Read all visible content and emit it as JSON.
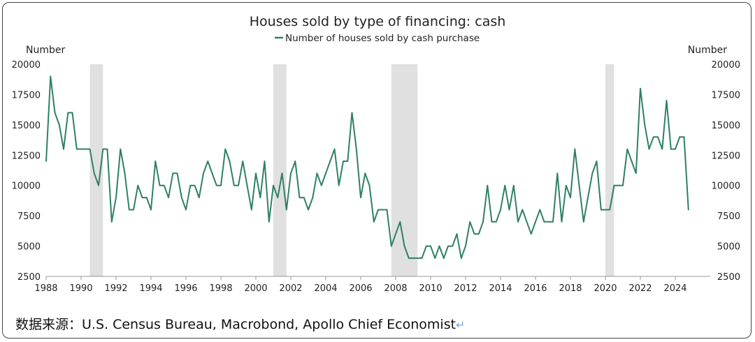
{
  "chart_data": {
    "type": "line",
    "title": "Houses sold by type of financing: cash",
    "left_axis_label": "Number",
    "right_axis_label": "Number",
    "series": [
      {
        "name": "Number of houses sold by cash purchase",
        "color": "#2e8065",
        "points": [
          [
            1988.0,
            12000
          ],
          [
            1988.25,
            19000
          ],
          [
            1988.5,
            16000
          ],
          [
            1988.75,
            15000
          ],
          [
            1989.0,
            13000
          ],
          [
            1989.25,
            16000
          ],
          [
            1989.5,
            16000
          ],
          [
            1989.75,
            13000
          ],
          [
            1990.0,
            13000
          ],
          [
            1990.25,
            13000
          ],
          [
            1990.5,
            13000
          ],
          [
            1990.75,
            11000
          ],
          [
            1991.0,
            10000
          ],
          [
            1991.25,
            13000
          ],
          [
            1991.5,
            13000
          ],
          [
            1991.75,
            7000
          ],
          [
            1992.0,
            9000
          ],
          [
            1992.25,
            13000
          ],
          [
            1992.5,
            11000
          ],
          [
            1992.75,
            8000
          ],
          [
            1993.0,
            8000
          ],
          [
            1993.25,
            10000
          ],
          [
            1993.5,
            9000
          ],
          [
            1993.75,
            9000
          ],
          [
            1994.0,
            8000
          ],
          [
            1994.25,
            12000
          ],
          [
            1994.5,
            10000
          ],
          [
            1994.75,
            10000
          ],
          [
            1995.0,
            9000
          ],
          [
            1995.25,
            11000
          ],
          [
            1995.5,
            11000
          ],
          [
            1995.75,
            9000
          ],
          [
            1996.0,
            8000
          ],
          [
            1996.25,
            10000
          ],
          [
            1996.5,
            10000
          ],
          [
            1996.75,
            9000
          ],
          [
            1997.0,
            11000
          ],
          [
            1997.25,
            12000
          ],
          [
            1997.5,
            11000
          ],
          [
            1997.75,
            10000
          ],
          [
            1998.0,
            10000
          ],
          [
            1998.25,
            13000
          ],
          [
            1998.5,
            12000
          ],
          [
            1998.75,
            10000
          ],
          [
            1999.0,
            10000
          ],
          [
            1999.25,
            12000
          ],
          [
            1999.5,
            10000
          ],
          [
            1999.75,
            8000
          ],
          [
            2000.0,
            11000
          ],
          [
            2000.25,
            9000
          ],
          [
            2000.5,
            12000
          ],
          [
            2000.75,
            7000
          ],
          [
            2001.0,
            10000
          ],
          [
            2001.25,
            9000
          ],
          [
            2001.5,
            11000
          ],
          [
            2001.75,
            8000
          ],
          [
            2002.0,
            11000
          ],
          [
            2002.25,
            12000
          ],
          [
            2002.5,
            9000
          ],
          [
            2002.75,
            9000
          ],
          [
            2003.0,
            8000
          ],
          [
            2003.25,
            9000
          ],
          [
            2003.5,
            11000
          ],
          [
            2003.75,
            10000
          ],
          [
            2004.0,
            11000
          ],
          [
            2004.25,
            12000
          ],
          [
            2004.5,
            13000
          ],
          [
            2004.75,
            10000
          ],
          [
            2005.0,
            12000
          ],
          [
            2005.25,
            12000
          ],
          [
            2005.5,
            16000
          ],
          [
            2005.75,
            13000
          ],
          [
            2006.0,
            9000
          ],
          [
            2006.25,
            11000
          ],
          [
            2006.5,
            10000
          ],
          [
            2006.75,
            7000
          ],
          [
            2007.0,
            8000
          ],
          [
            2007.25,
            8000
          ],
          [
            2007.5,
            8000
          ],
          [
            2007.75,
            5000
          ],
          [
            2008.0,
            6000
          ],
          [
            2008.25,
            7000
          ],
          [
            2008.5,
            5000
          ],
          [
            2008.75,
            4000
          ],
          [
            2009.0,
            4000
          ],
          [
            2009.25,
            4000
          ],
          [
            2009.5,
            4000
          ],
          [
            2009.75,
            5000
          ],
          [
            2010.0,
            5000
          ],
          [
            2010.25,
            4000
          ],
          [
            2010.5,
            5000
          ],
          [
            2010.75,
            4000
          ],
          [
            2011.0,
            5000
          ],
          [
            2011.25,
            5000
          ],
          [
            2011.5,
            6000
          ],
          [
            2011.75,
            4000
          ],
          [
            2012.0,
            5000
          ],
          [
            2012.25,
            7000
          ],
          [
            2012.5,
            6000
          ],
          [
            2012.75,
            6000
          ],
          [
            2013.0,
            7000
          ],
          [
            2013.25,
            10000
          ],
          [
            2013.5,
            7000
          ],
          [
            2013.75,
            7000
          ],
          [
            2014.0,
            8000
          ],
          [
            2014.25,
            10000
          ],
          [
            2014.5,
            8000
          ],
          [
            2014.75,
            10000
          ],
          [
            2015.0,
            7000
          ],
          [
            2015.25,
            8000
          ],
          [
            2015.5,
            7000
          ],
          [
            2015.75,
            6000
          ],
          [
            2016.0,
            7000
          ],
          [
            2016.25,
            8000
          ],
          [
            2016.5,
            7000
          ],
          [
            2016.75,
            7000
          ],
          [
            2017.0,
            7000
          ],
          [
            2017.25,
            11000
          ],
          [
            2017.5,
            7000
          ],
          [
            2017.75,
            10000
          ],
          [
            2018.0,
            9000
          ],
          [
            2018.25,
            13000
          ],
          [
            2018.5,
            10000
          ],
          [
            2018.75,
            7000
          ],
          [
            2019.0,
            9000
          ],
          [
            2019.25,
            11000
          ],
          [
            2019.5,
            12000
          ],
          [
            2019.75,
            8000
          ],
          [
            2020.0,
            8000
          ],
          [
            2020.25,
            8000
          ],
          [
            2020.5,
            10000
          ],
          [
            2020.75,
            10000
          ],
          [
            2021.0,
            10000
          ],
          [
            2021.25,
            13000
          ],
          [
            2021.5,
            12000
          ],
          [
            2021.75,
            11000
          ],
          [
            2022.0,
            18000
          ],
          [
            2022.25,
            15000
          ],
          [
            2022.5,
            13000
          ],
          [
            2022.75,
            14000
          ],
          [
            2023.0,
            14000
          ],
          [
            2023.25,
            13000
          ],
          [
            2023.5,
            17000
          ],
          [
            2023.75,
            13000
          ],
          [
            2024.0,
            13000
          ],
          [
            2024.25,
            14000
          ],
          [
            2024.5,
            14000
          ],
          [
            2024.75,
            8000
          ]
        ]
      }
    ],
    "xlim": [
      1988,
      2026
    ],
    "ylim": [
      2500,
      20000
    ],
    "x_ticks": [
      1988,
      1990,
      1992,
      1994,
      1996,
      1998,
      2000,
      2002,
      2004,
      2006,
      2008,
      2010,
      2012,
      2014,
      2016,
      2018,
      2020,
      2022,
      2024
    ],
    "y_ticks": [
      2500,
      5000,
      7500,
      10000,
      12500,
      15000,
      17500,
      20000
    ],
    "recession_shading": [
      [
        1990.5,
        1991.25
      ],
      [
        2001.0,
        2001.75
      ],
      [
        2007.75,
        2009.25
      ],
      [
        2020.0,
        2020.5
      ]
    ],
    "recession_color": "#e0e0e0",
    "legend_position": "top-center",
    "grid": false
  },
  "source": {
    "text": "数据来源：U.S. Census Bureau, Macrobond, Apollo Chief Economist",
    "return_mark": "↵"
  }
}
